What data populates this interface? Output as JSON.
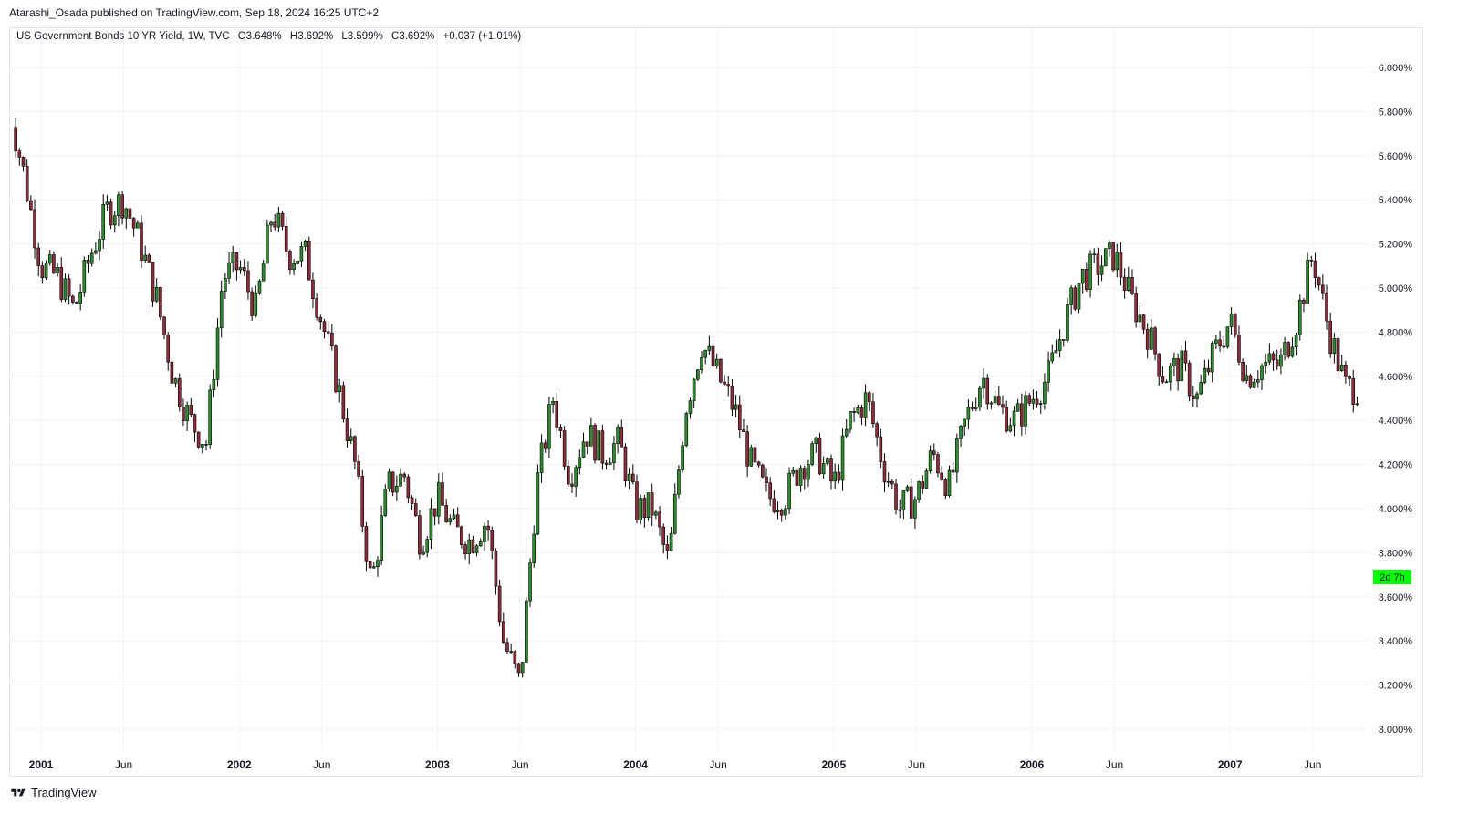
{
  "header": {
    "published": "Atarashi_Osada published on TradingView.com, Sep 18, 2024 16:25 UTC+2"
  },
  "legend": {
    "symbol": "US Government Bonds 10 YR Yield, 1W, TVC",
    "open": "O3.648%",
    "high": "H3.692%",
    "low": "L3.599%",
    "close": "C3.692%",
    "change": "+0.037 (+1.01%)"
  },
  "countdown_badge": "2d 7h",
  "footer": {
    "brand": "TradingView",
    "logo_icon": "tradingview-logo-icon"
  },
  "colors": {
    "up": "#26a69a",
    "up_body": "#2e8b2e",
    "down_body": "#8b2e3a",
    "badge": "#00ff00",
    "grid": "#f0f3fa"
  },
  "chart_data": {
    "type": "candlestick",
    "symbol": "US Government Bonds 10 YR Yield",
    "interval": "1W",
    "ylim": [
      2.9,
      6.2
    ],
    "yticks": [
      "3.000%",
      "3.200%",
      "3.400%",
      "3.600%",
      "3.800%",
      "4.000%",
      "4.200%",
      "4.400%",
      "4.600%",
      "4.800%",
      "5.000%",
      "5.200%",
      "5.400%",
      "5.600%",
      "5.800%",
      "6.000%"
    ],
    "ytick_values": [
      3.0,
      3.2,
      3.4,
      3.6,
      3.8,
      4.0,
      4.2,
      4.4,
      4.6,
      4.8,
      5.0,
      5.2,
      5.4,
      5.6,
      5.8,
      6.0
    ],
    "xticks": [
      "2001",
      "Jun",
      "2002",
      "Jun",
      "2003",
      "Jun",
      "2004",
      "Jun",
      "2005",
      "Jun",
      "2006",
      "Jun",
      "2007",
      "Jun"
    ],
    "xtick_dates": [
      "2001-01",
      "2001-06",
      "2002-01",
      "2002-06",
      "2003-01",
      "2003-06",
      "2004-01",
      "2004-06",
      "2005-01",
      "2005-06",
      "2006-01",
      "2006-06",
      "2007-01",
      "2007-06"
    ],
    "x_range": [
      "2000-11",
      "2007-09"
    ],
    "close_path": [
      [
        "2000-11",
        5.85
      ],
      [
        "2000-12",
        5.5
      ],
      [
        "2001-01",
        5.1
      ],
      [
        "2001-02",
        5.05
      ],
      [
        "2001-03",
        4.9
      ],
      [
        "2001-04",
        5.15
      ],
      [
        "2001-05",
        5.35
      ],
      [
        "2001-06",
        5.4
      ],
      [
        "2001-07",
        5.2
      ],
      [
        "2001-08",
        4.95
      ],
      [
        "2001-09",
        4.6
      ],
      [
        "2001-10",
        4.4
      ],
      [
        "2001-11",
        4.3
      ],
      [
        "2001-12",
        5.05
      ],
      [
        "2002-01",
        5.1
      ],
      [
        "2002-02",
        4.9
      ],
      [
        "2002-03",
        5.35
      ],
      [
        "2002-04",
        5.15
      ],
      [
        "2002-05",
        5.15
      ],
      [
        "2002-06",
        4.85
      ],
      [
        "2002-07",
        4.55
      ],
      [
        "2002-08",
        4.2
      ],
      [
        "2002-09",
        3.65
      ],
      [
        "2002-10",
        4.1
      ],
      [
        "2002-11",
        4.15
      ],
      [
        "2002-12",
        3.85
      ],
      [
        "2003-01",
        4.05
      ],
      [
        "2003-02",
        3.9
      ],
      [
        "2003-03",
        3.85
      ],
      [
        "2003-04",
        3.95
      ],
      [
        "2003-05",
        3.4
      ],
      [
        "2003-06",
        3.2
      ],
      [
        "2003-07",
        4.1
      ],
      [
        "2003-08",
        4.5
      ],
      [
        "2003-09",
        4.15
      ],
      [
        "2003-10",
        4.35
      ],
      [
        "2003-11",
        4.25
      ],
      [
        "2003-12",
        4.3
      ],
      [
        "2004-01",
        4.0
      ],
      [
        "2004-02",
        4.0
      ],
      [
        "2004-03",
        3.75
      ],
      [
        "2004-04",
        4.45
      ],
      [
        "2004-05",
        4.75
      ],
      [
        "2004-06",
        4.6
      ],
      [
        "2004-07",
        4.45
      ],
      [
        "2004-08",
        4.2
      ],
      [
        "2004-09",
        4.05
      ],
      [
        "2004-10",
        4.05
      ],
      [
        "2004-11",
        4.2
      ],
      [
        "2004-12",
        4.25
      ],
      [
        "2005-01",
        4.1
      ],
      [
        "2005-02",
        4.4
      ],
      [
        "2005-03",
        4.5
      ],
      [
        "2005-04",
        4.2
      ],
      [
        "2005-05",
        4.0
      ],
      [
        "2005-06",
        4.05
      ],
      [
        "2005-07",
        4.25
      ],
      [
        "2005-08",
        4.1
      ],
      [
        "2005-09",
        4.4
      ],
      [
        "2005-10",
        4.6
      ],
      [
        "2005-11",
        4.45
      ],
      [
        "2005-12",
        4.4
      ],
      [
        "2006-01",
        4.5
      ],
      [
        "2006-02",
        4.6
      ],
      [
        "2006-03",
        4.85
      ],
      [
        "2006-04",
        5.05
      ],
      [
        "2006-05",
        5.1
      ],
      [
        "2006-06",
        5.15
      ],
      [
        "2006-07",
        4.95
      ],
      [
        "2006-08",
        4.8
      ],
      [
        "2006-09",
        4.6
      ],
      [
        "2006-10",
        4.65
      ],
      [
        "2006-11",
        4.5
      ],
      [
        "2006-12",
        4.7
      ],
      [
        "2007-01",
        4.85
      ],
      [
        "2007-02",
        4.6
      ],
      [
        "2007-03",
        4.65
      ],
      [
        "2007-04",
        4.65
      ],
      [
        "2007-05",
        4.85
      ],
      [
        "2007-06",
        5.15
      ],
      [
        "2007-07",
        4.8
      ],
      [
        "2007-08",
        4.55
      ]
    ]
  }
}
